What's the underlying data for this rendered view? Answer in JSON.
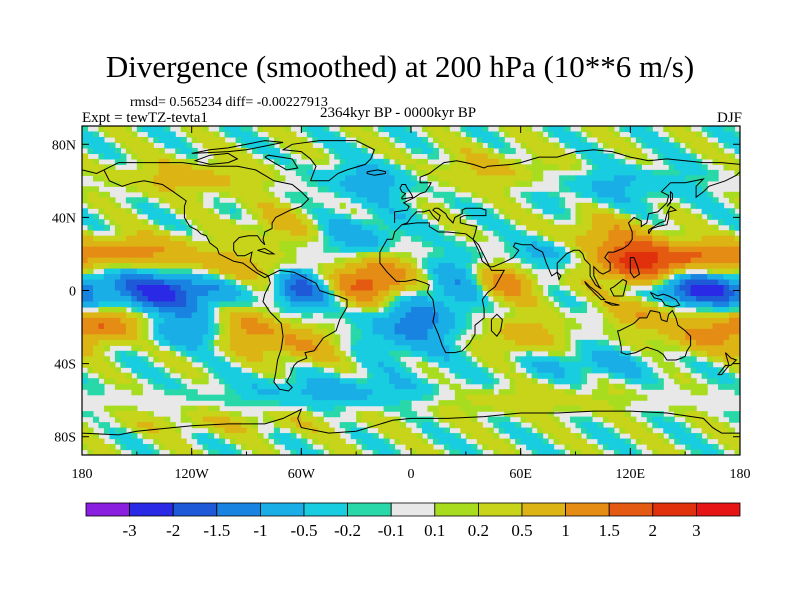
{
  "header": {
    "title": "Divergence (smoothed) at 200 hPa (10**6 m/s)",
    "stats": "rmsd= 0.565234 diff= -0.00227913",
    "experiment": "Expt = tewTZ-tevta1",
    "period": "2364kyr BP - 0000kyr BP",
    "season": "DJF"
  },
  "chart_data": {
    "type": "heatmap",
    "title": "Divergence (smoothed) at 200 hPa (10**6 m/s)",
    "projection": "cylindrical equidistant",
    "x_axis": {
      "range": [
        -180,
        180
      ],
      "ticks": [
        -180,
        -120,
        -60,
        0,
        60,
        120,
        180
      ],
      "tick_labels": [
        "180",
        "120W",
        "60W",
        "0",
        "60E",
        "120E",
        "180"
      ]
    },
    "y_axis": {
      "range": [
        -90,
        90
      ],
      "ticks": [
        80,
        40,
        0,
        -40,
        -80
      ],
      "tick_labels": [
        "80N",
        "40N",
        "0",
        "40S",
        "80S"
      ]
    },
    "colorbar": {
      "levels": [
        "-3",
        "-2",
        "-1.5",
        "-1",
        "-0.5",
        "-0.2",
        "-0.1",
        "0.1",
        "0.2",
        "0.5",
        "1",
        "1.5",
        "2",
        "3"
      ],
      "colors": [
        "#8a1fe0",
        "#2a2ae6",
        "#1e5ad8",
        "#1883e0",
        "#1aaee6",
        "#18cde0",
        "#28d8a8",
        "#e8e8e8",
        "#a8dc1e",
        "#c8d41a",
        "#dcb414",
        "#e48c14",
        "#e45a10",
        "#e0300c",
        "#e61414"
      ]
    },
    "anomalies": [
      {
        "lon": -135,
        "lat": 0,
        "val": -2.3,
        "wx": 22,
        "wy": 9
      },
      {
        "lon": -60,
        "lat": 0,
        "val": -1.7,
        "wx": 10,
        "wy": 8
      },
      {
        "lon": -110,
        "lat": 12,
        "val": 1.0,
        "wx": 28,
        "wy": 6
      },
      {
        "lon": -150,
        "lat": 22,
        "val": 1.1,
        "wx": 24,
        "wy": 6
      },
      {
        "lon": -165,
        "lat": -18,
        "val": 1.5,
        "wx": 16,
        "wy": 7
      },
      {
        "lon": -120,
        "lat": -22,
        "val": -1.0,
        "wx": 18,
        "wy": 6
      },
      {
        "lon": -90,
        "lat": -20,
        "val": 1.3,
        "wx": 14,
        "wy": 8
      },
      {
        "lon": -60,
        "lat": -30,
        "val": 0.9,
        "wx": 16,
        "wy": 7
      },
      {
        "lon": -70,
        "lat": 35,
        "val": 0.6,
        "wx": 18,
        "wy": 9
      },
      {
        "lon": -30,
        "lat": 30,
        "val": -0.8,
        "wx": 18,
        "wy": 8
      },
      {
        "lon": -20,
        "lat": 5,
        "val": 1.9,
        "wx": 15,
        "wy": 9
      },
      {
        "lon": 0,
        "lat": -18,
        "val": -1.2,
        "wx": 18,
        "wy": 12
      },
      {
        "lon": 30,
        "lat": 5,
        "val": -1.0,
        "wx": 14,
        "wy": 10
      },
      {
        "lon": 50,
        "lat": 5,
        "val": 1.5,
        "wx": 14,
        "wy": 8
      },
      {
        "lon": 60,
        "lat": -25,
        "val": 0.8,
        "wx": 16,
        "wy": 8
      },
      {
        "lon": 75,
        "lat": 20,
        "val": -0.9,
        "wx": 14,
        "wy": 8
      },
      {
        "lon": 100,
        "lat": 30,
        "val": 0.8,
        "wx": 20,
        "wy": 8
      },
      {
        "lon": 125,
        "lat": 15,
        "val": 2.2,
        "wx": 18,
        "wy": 9
      },
      {
        "lon": 130,
        "lat": -10,
        "val": 1.2,
        "wx": 14,
        "wy": 7
      },
      {
        "lon": 155,
        "lat": 0,
        "val": -2.4,
        "wx": 20,
        "wy": 7
      },
      {
        "lon": 165,
        "lat": 18,
        "val": 1.2,
        "wx": 18,
        "wy": 6
      },
      {
        "lon": 160,
        "lat": -25,
        "val": 1.0,
        "wx": 18,
        "wy": 8
      },
      {
        "lon": 100,
        "lat": -40,
        "val": -0.6,
        "wx": 30,
        "wy": 6
      },
      {
        "lon": -20,
        "lat": 60,
        "val": -0.8,
        "wx": 22,
        "wy": 8
      },
      {
        "lon": -120,
        "lat": 62,
        "val": 0.7,
        "wx": 28,
        "wy": 7
      },
      {
        "lon": 40,
        "lat": 65,
        "val": 0.6,
        "wx": 35,
        "wy": 8
      },
      {
        "lon": 110,
        "lat": 58,
        "val": -0.6,
        "wx": 30,
        "wy": 8
      },
      {
        "lon": -40,
        "lat": -55,
        "val": -0.7,
        "wx": 40,
        "wy": 6
      },
      {
        "lon": 60,
        "lat": -60,
        "val": 0.4,
        "wx": 40,
        "wy": 6
      },
      {
        "lon": -100,
        "lat": -72,
        "val": 0.4,
        "wx": 50,
        "wy": 5
      }
    ]
  }
}
